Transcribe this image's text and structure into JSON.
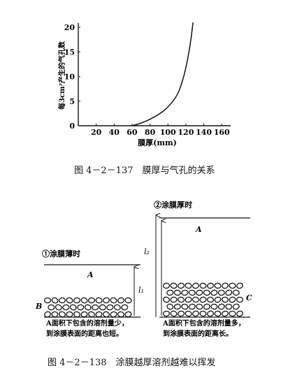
{
  "figure_137": {
    "caption": "图 4－2－137　膜厚与气孔的关系",
    "chart_data": {
      "type": "line",
      "xlabel": "膜厚(mm)",
      "ylabel": "每3cm²产生的气孔数",
      "x_ticks": [
        "20",
        "40",
        "60",
        "80",
        "100",
        "120",
        "140",
        "160"
      ],
      "y_ticks": [
        "0",
        "5",
        "10",
        "15",
        "20"
      ],
      "xlim": [
        0,
        170
      ],
      "ylim": [
        0,
        22
      ],
      "series": [
        {
          "x": [
            60,
            70,
            80,
            90,
            100,
            110,
            115,
            120,
            125,
            128
          ],
          "y": [
            0,
            0.5,
            1.3,
            2.3,
            3.7,
            6.0,
            8.3,
            11.6,
            16.5,
            21
          ]
        }
      ]
    }
  },
  "figure_138": {
    "caption": "图 4－2－138　涂膜越厚溶剂越难以挥发",
    "left": {
      "title": "①涂膜薄时",
      "label_a": "A",
      "label_b": "B",
      "distance_label": "l₁",
      "note_line1": "A面积下包含的溶剂量少，",
      "note_line2": "到涂膜表面的距离也短。"
    },
    "right": {
      "title": "②涂膜厚时",
      "label_a": "A",
      "label_c": "C",
      "distance_label": "l₂",
      "note_line1": "A面积下包含的溶剂量多，",
      "note_line2": "到涂膜表面的距离长。"
    }
  }
}
